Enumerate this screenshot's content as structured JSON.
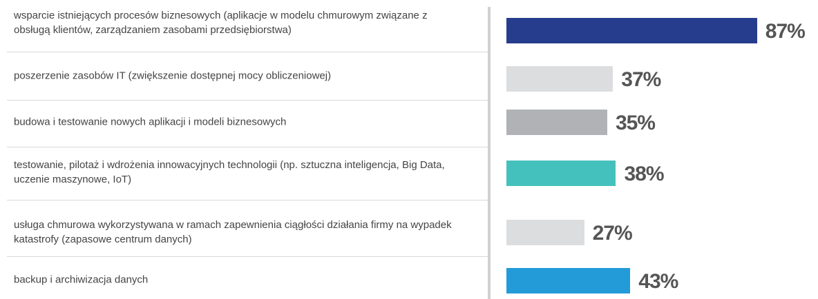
{
  "chart_data": {
    "type": "bar",
    "categories": [
      "wsparcie istniejących procesów biznesowych (aplikacje w modelu chmurowym związane z obsługą klientów, zarządzaniem zasobami przedsiębiorstwa)",
      "poszerzenie zasobów IT (zwiększenie dostępnej mocy obliczeniowej)",
      "budowa i testowanie nowych aplikacji i modeli biznesowych",
      "testowanie, pilotaż i wdrożenia innowacyjnych technologii (np. sztuczna inteligencja, Big Data, uczenie maszynowe, IoT)",
      "usługa chmurowa wykorzystywana w ramach zapewnienia ciągłości działania firmy na wypadek katastrofy (zapasowe centrum danych)",
      "backup i archiwizacja danych"
    ],
    "values": [
      87,
      37,
      35,
      38,
      27,
      43
    ],
    "value_labels": [
      "87%",
      "37%",
      "35%",
      "38%",
      "27%",
      "43%"
    ],
    "colors": [
      "#253d8c",
      "#dcdddf",
      "#b1b2b6",
      "#45c1bd",
      "#dcdddf",
      "#239bd8"
    ]
  }
}
